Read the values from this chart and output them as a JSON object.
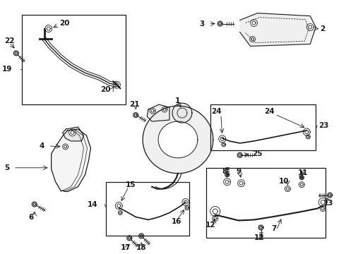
{
  "bg_color": "#ffffff",
  "lc": "#1a1a1a",
  "figsize": [
    4.9,
    3.6
  ],
  "dpi": 100,
  "xlim": [
    0,
    490
  ],
  "ylim": [
    0,
    360
  ]
}
